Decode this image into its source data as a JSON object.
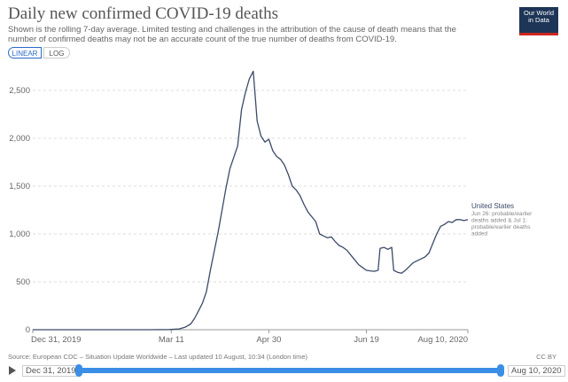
{
  "header": {
    "title": "Daily new confirmed COVID-19 deaths",
    "subtitle": "Shown is the rolling 7-day average. Limited testing and challenges in the attribution of the cause of death means that the number of confirmed deaths may not be an accurate count of the true number of deaths from COVID-19.",
    "logo_line1": "Our World",
    "logo_line2": "in Data"
  },
  "controls": {
    "linear_label": "LINEAR",
    "log_label": "LOG",
    "selected": "LINEAR"
  },
  "footer": {
    "source": "Source: European CDC – Situation Update Worldwide – Last updated 10 August, 10:34 (London time)",
    "license": "CC BY"
  },
  "timeline": {
    "start_label": "Dec 31, 2019",
    "end_label": "Aug 10, 2020"
  },
  "colors": {
    "line": "#3b4a68",
    "grid": "#dddddd",
    "accent": "#2a6ac9",
    "slider": "#3a8ee6"
  },
  "chart_data": {
    "type": "line",
    "title": "Daily new confirmed COVID-19 deaths",
    "x_type": "date",
    "xlim": [
      "2019-12-31",
      "2020-08-10"
    ],
    "ylim": [
      0,
      2750
    ],
    "y_ticks": [
      0,
      500,
      1000,
      1500,
      2000,
      2500
    ],
    "y_tick_labels": [
      "0",
      "500",
      "1,000",
      "1,500",
      "2,000",
      "2,500"
    ],
    "x_ticks": [
      "2019-12-31",
      "2020-03-11",
      "2020-04-30",
      "2020-06-19",
      "2020-08-10"
    ],
    "x_tick_labels": [
      "Dec 31, 2019",
      "Mar 11",
      "Apr 30",
      "Jun 19",
      "Aug 10, 2020"
    ],
    "grid": "horizontal-dashed",
    "series": [
      {
        "name": "United States",
        "annotation": "Jun 26: probable/earlier deaths added & Jul 1: probable/earlier deaths added",
        "points": [
          [
            "2019-12-31",
            0
          ],
          [
            "2020-02-29",
            0
          ],
          [
            "2020-03-10",
            2
          ],
          [
            "2020-03-15",
            8
          ],
          [
            "2020-03-18",
            25
          ],
          [
            "2020-03-21",
            60
          ],
          [
            "2020-03-23",
            120
          ],
          [
            "2020-03-25",
            200
          ],
          [
            "2020-03-27",
            280
          ],
          [
            "2020-03-29",
            400
          ],
          [
            "2020-03-31",
            620
          ],
          [
            "2020-04-02",
            820
          ],
          [
            "2020-04-04",
            1020
          ],
          [
            "2020-04-06",
            1250
          ],
          [
            "2020-04-08",
            1480
          ],
          [
            "2020-04-10",
            1680
          ],
          [
            "2020-04-12",
            1800
          ],
          [
            "2020-04-14",
            1920
          ],
          [
            "2020-04-16",
            2300
          ],
          [
            "2020-04-18",
            2480
          ],
          [
            "2020-04-20",
            2620
          ],
          [
            "2020-04-22",
            2700
          ],
          [
            "2020-04-24",
            2180
          ],
          [
            "2020-04-26",
            2020
          ],
          [
            "2020-04-28",
            1960
          ],
          [
            "2020-04-30",
            1990
          ],
          [
            "2020-05-02",
            1870
          ],
          [
            "2020-05-04",
            1810
          ],
          [
            "2020-05-06",
            1780
          ],
          [
            "2020-05-08",
            1720
          ],
          [
            "2020-05-10",
            1620
          ],
          [
            "2020-05-12",
            1500
          ],
          [
            "2020-05-14",
            1460
          ],
          [
            "2020-05-16",
            1400
          ],
          [
            "2020-05-18",
            1310
          ],
          [
            "2020-05-20",
            1230
          ],
          [
            "2020-05-22",
            1180
          ],
          [
            "2020-05-24",
            1130
          ],
          [
            "2020-05-26",
            1000
          ],
          [
            "2020-05-28",
            980
          ],
          [
            "2020-05-30",
            960
          ],
          [
            "2020-06-01",
            970
          ],
          [
            "2020-06-03",
            920
          ],
          [
            "2020-06-05",
            880
          ],
          [
            "2020-06-07",
            860
          ],
          [
            "2020-06-09",
            830
          ],
          [
            "2020-06-11",
            780
          ],
          [
            "2020-06-13",
            730
          ],
          [
            "2020-06-15",
            680
          ],
          [
            "2020-06-17",
            650
          ],
          [
            "2020-06-19",
            620
          ],
          [
            "2020-06-21",
            615
          ],
          [
            "2020-06-23",
            610
          ],
          [
            "2020-06-25",
            620
          ],
          [
            "2020-06-26",
            850
          ],
          [
            "2020-06-28",
            860
          ],
          [
            "2020-06-30",
            840
          ],
          [
            "2020-07-02",
            860
          ],
          [
            "2020-07-03",
            620
          ],
          [
            "2020-07-05",
            600
          ],
          [
            "2020-07-07",
            590
          ],
          [
            "2020-07-09",
            620
          ],
          [
            "2020-07-11",
            660
          ],
          [
            "2020-07-13",
            700
          ],
          [
            "2020-07-15",
            720
          ],
          [
            "2020-07-17",
            740
          ],
          [
            "2020-07-19",
            760
          ],
          [
            "2020-07-21",
            800
          ],
          [
            "2020-07-23",
            900
          ],
          [
            "2020-07-25",
            1000
          ],
          [
            "2020-07-27",
            1080
          ],
          [
            "2020-07-29",
            1100
          ],
          [
            "2020-07-31",
            1130
          ],
          [
            "2020-08-02",
            1120
          ],
          [
            "2020-08-04",
            1150
          ],
          [
            "2020-08-06",
            1150
          ],
          [
            "2020-08-08",
            1140
          ],
          [
            "2020-08-10",
            1150
          ]
        ]
      }
    ]
  }
}
